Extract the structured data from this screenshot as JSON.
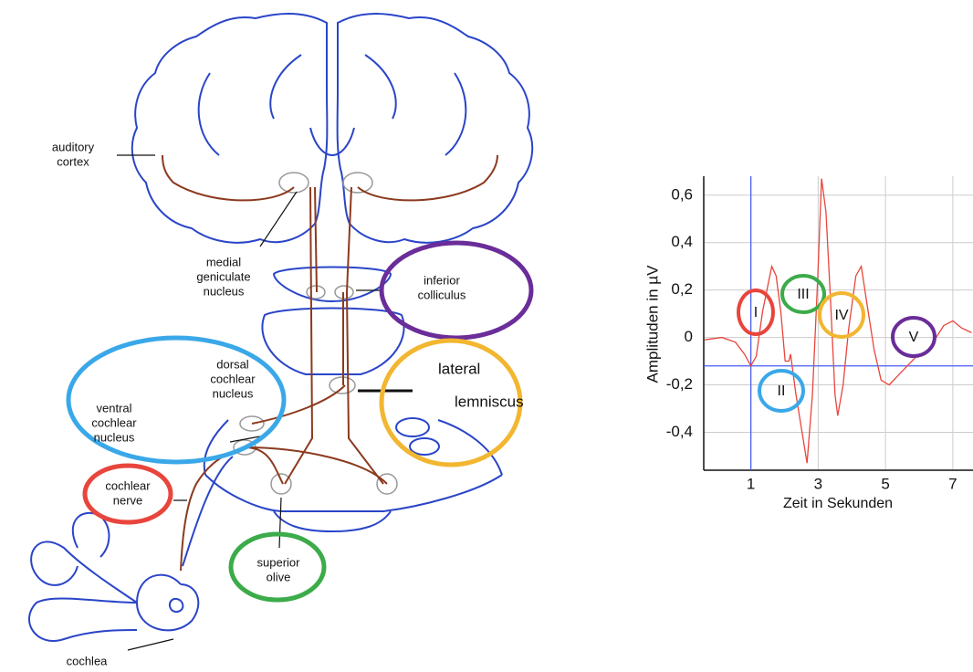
{
  "diagram": {
    "labels": [
      {
        "lines": [
          "auditory",
          "cortex"
        ]
      },
      {
        "lines": [
          "medial",
          "geniculate",
          "nucleus"
        ]
      },
      {
        "lines": [
          "inferior",
          "colliculus"
        ]
      },
      {
        "lines": [
          "dorsal",
          "cochlear",
          "nucleus"
        ]
      },
      {
        "lines": [
          "ventral",
          "cochlear",
          "nucleus"
        ]
      },
      {
        "lines": [
          "lateral",
          "lemniscus"
        ]
      },
      {
        "lines": [
          "cochlear",
          "nerve"
        ]
      },
      {
        "lines": [
          "superior",
          "olive"
        ]
      },
      {
        "lines": [
          "cochlea"
        ]
      }
    ]
  },
  "chart_data": {
    "type": "line",
    "x_label": "Zeit in Sekunden",
    "y_label": "Amplituden in µV",
    "x": [
      -0.37,
      0.14,
      0.54,
      0.81,
      1,
      1.16,
      1.35,
      1.62,
      1.75,
      1.89,
      2.02,
      2.13,
      2.18,
      2.34,
      2.51,
      2.67,
      2.83,
      2.99,
      3.1,
      3.23,
      3.37,
      3.5,
      3.58,
      3.74,
      3.9,
      4.12,
      4.28,
      4.44,
      4.66,
      4.87,
      5.11,
      5.38,
      5.65,
      5.92,
      6.19,
      6.46,
      6.73,
      7,
      7.26,
      7.56
    ],
    "values": [
      -0.01,
      0,
      -0.02,
      -0.07,
      -0.12,
      -0.08,
      0.11,
      0.3,
      0.26,
      0.11,
      -0.1,
      -0.1,
      -0.07,
      -0.24,
      -0.39,
      -0.53,
      -0.24,
      0.26,
      0.67,
      0.53,
      0.15,
      -0.24,
      -0.33,
      -0.2,
      0.03,
      0.26,
      0.3,
      0.15,
      -0.05,
      -0.18,
      -0.2,
      -0.16,
      -0.12,
      -0.08,
      -0.07,
      -0.01,
      0.05,
      0.07,
      0.04,
      0.02
    ],
    "color": "#e8453c",
    "xlim": [
      -0.4,
      7.6
    ],
    "ylim": [
      -0.56,
      0.68
    ],
    "xticks": [
      1,
      3,
      5,
      7
    ],
    "yticks": [
      {
        "value": -0.4,
        "label": "-0,4"
      },
      {
        "value": -0.2,
        "label": "-0,2"
      },
      0,
      {
        "value": 0.2,
        "label": "0,2"
      },
      {
        "value": 0.4,
        "label": "0,4"
      },
      {
        "value": 0.6,
        "label": "0,6"
      }
    ],
    "grid": true,
    "cursor": {
      "x": 1,
      "y": -0.12,
      "color": "#4a5cf0"
    },
    "annotations": [
      {
        "text": "I",
        "color": "#e8453c"
      },
      {
        "text": "II",
        "color": "#3aa8e8"
      },
      {
        "text": "III",
        "color": "#3cab4a"
      },
      {
        "text": "IV",
        "color": "#f2b630"
      },
      {
        "text": "V",
        "color": "#6a2d99"
      }
    ]
  }
}
